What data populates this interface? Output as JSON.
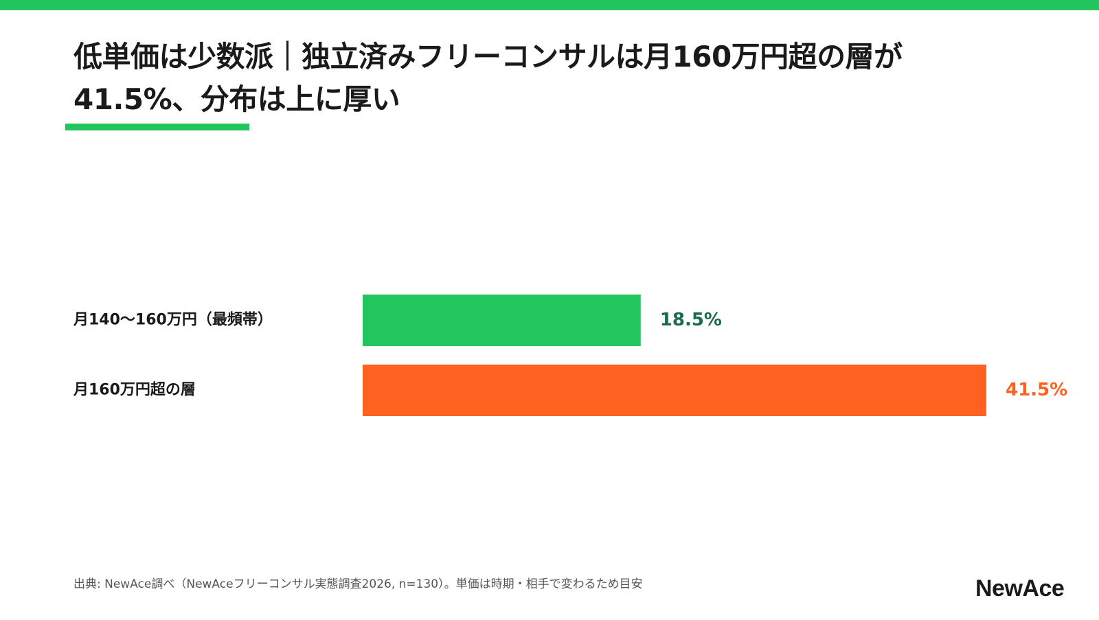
{
  "title": {
    "line1": "低単価は少数派｜独立済みフリーコンサルは月160万円超の層が",
    "line2": "41.5%、分布は上に厚い"
  },
  "colors": {
    "accent_green": "#22c55e",
    "accent_orange": "#ff6120",
    "label_green": "#1a6b4a",
    "text": "#1a1a1a"
  },
  "chart_data": {
    "type": "bar",
    "orientation": "horizontal",
    "categories": [
      "月140〜160万円（最頻帯）",
      "月160万円超の層"
    ],
    "values": [
      18.5,
      41.5
    ],
    "value_labels": [
      "18.5%",
      "41.5%"
    ],
    "bar_colors": [
      "#22c55e",
      "#ff6120"
    ],
    "value_label_colors": [
      "#1a6b4a",
      "#ff6120"
    ],
    "xlim": [
      0,
      41.5
    ],
    "grid": false,
    "legend": "none"
  },
  "footer": {
    "source": "出典: NewAce調べ（NewAceフリーコンサル実態調査2026, n=130）。単価は時期・相手で変わるため目安"
  },
  "logo": {
    "text": "NewAce"
  }
}
